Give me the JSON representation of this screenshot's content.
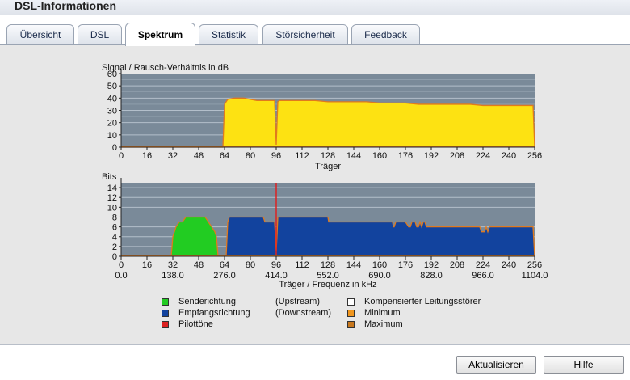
{
  "window": {
    "title": "DSL-Informationen"
  },
  "tabs": [
    {
      "label": "Übersicht",
      "active": false
    },
    {
      "label": "DSL",
      "active": false
    },
    {
      "label": "Spektrum",
      "active": true
    },
    {
      "label": "Statistik",
      "active": false
    },
    {
      "label": "Störsicherheit",
      "active": false
    },
    {
      "label": "Feedback",
      "active": false
    }
  ],
  "chart_data": [
    {
      "type": "area",
      "title": "Signal / Rausch-Verhältnis in dB",
      "xlabel": "Träger",
      "ylabel": "",
      "xlim": [
        0,
        256
      ],
      "ylim": [
        0,
        60
      ],
      "xticks": [
        0,
        16,
        32,
        48,
        64,
        80,
        96,
        112,
        128,
        144,
        160,
        176,
        192,
        208,
        224,
        240,
        256
      ],
      "yticks": [
        0,
        10,
        20,
        30,
        40,
        50,
        60
      ],
      "grid": true,
      "colors": {
        "fill": "#fde212",
        "line": "#e07a1e",
        "background": "#7a8a99",
        "grid": "#b3bfcb"
      },
      "series": [
        {
          "x": [
            0,
            63,
            64,
            66,
            70,
            74,
            76,
            80,
            84,
            88,
            92,
            95,
            96,
            97,
            98,
            104,
            112,
            120,
            128,
            136,
            144,
            152,
            160,
            168,
            176,
            184,
            192,
            200,
            208,
            216,
            224,
            232,
            240,
            248,
            255,
            256
          ],
          "y": [
            0,
            0,
            35,
            39,
            40,
            40,
            40,
            39,
            38,
            38,
            38,
            38,
            2,
            37,
            38,
            38,
            38,
            38,
            37,
            37,
            37,
            37,
            36,
            36,
            36,
            35,
            35,
            35,
            35,
            35,
            34,
            34,
            34,
            34,
            34,
            0
          ]
        }
      ]
    },
    {
      "type": "area",
      "title": "Bits",
      "xlabel": "Träger / Frequenz in kHz",
      "ylabel": "",
      "xlim": [
        0,
        256
      ],
      "ylim": [
        0,
        15
      ],
      "xticks": [
        0,
        16,
        32,
        48,
        64,
        80,
        96,
        112,
        128,
        144,
        160,
        176,
        192,
        208,
        224,
        240,
        256
      ],
      "freq_ticks": [
        {
          "x": 0,
          "label": "0.0"
        },
        {
          "x": 32,
          "label": "138.0"
        },
        {
          "x": 64,
          "label": "276.0"
        },
        {
          "x": 96,
          "label": "414.0"
        },
        {
          "x": 128,
          "label": "552.0"
        },
        {
          "x": 160,
          "label": "690.0"
        },
        {
          "x": 192,
          "label": "828.0"
        },
        {
          "x": 224,
          "label": "966.0"
        },
        {
          "x": 256,
          "label": "1104.0"
        }
      ],
      "yticks": [
        0,
        2,
        4,
        6,
        8,
        10,
        12,
        14
      ],
      "grid": true,
      "pilot_x": 96,
      "colors": {
        "upstream": "#22cc22",
        "downstream": "#12439e",
        "pilot": "#dd2222",
        "line": "#e07a1e",
        "background": "#7a8a99",
        "grid": "#b3bfcb"
      },
      "series": [
        {
          "name": "Senderichtung",
          "x": [
            31,
            32,
            33,
            34,
            36,
            38,
            40,
            52,
            54,
            56,
            58,
            59,
            60
          ],
          "y": [
            0,
            4,
            5,
            6,
            7,
            7,
            8,
            8,
            7,
            6,
            5,
            4,
            0
          ]
        },
        {
          "name": "Empfangsrichtung",
          "x": [
            65,
            66,
            67,
            88,
            89,
            95,
            96,
            97,
            128,
            128.5,
            168,
            168.5,
            169,
            170,
            176,
            178,
            179,
            180,
            182,
            183,
            184,
            185,
            186,
            187,
            188,
            189,
            222,
            223,
            225,
            226,
            227,
            228,
            255,
            256
          ],
          "y": [
            0,
            7,
            8,
            8,
            7,
            7,
            1,
            8,
            8,
            7,
            7,
            6,
            6,
            7,
            7,
            6,
            6,
            7,
            7,
            6,
            6,
            7,
            6,
            7,
            7,
            6,
            6,
            5,
            5,
            6,
            5,
            6,
            6,
            0
          ]
        }
      ]
    }
  ],
  "legend": {
    "col1": [
      {
        "color": "#22cc22",
        "label": "Senderichtung",
        "note": "(Upstream)"
      },
      {
        "color": "#12439e",
        "label": "Empfangsrichtung",
        "note": "(Downstream)"
      },
      {
        "color": "#dd2222",
        "label": "Pilottöne",
        "note": ""
      }
    ],
    "col2": [
      {
        "color": "#ffffff",
        "label": "Kompensierter Leitungsstörer"
      },
      {
        "color": "#f0961e",
        "label": "Minimum"
      },
      {
        "color": "#c8781e",
        "label": "Maximum"
      }
    ]
  },
  "buttons": {
    "refresh": "Aktualisieren",
    "help": "Hilfe"
  }
}
